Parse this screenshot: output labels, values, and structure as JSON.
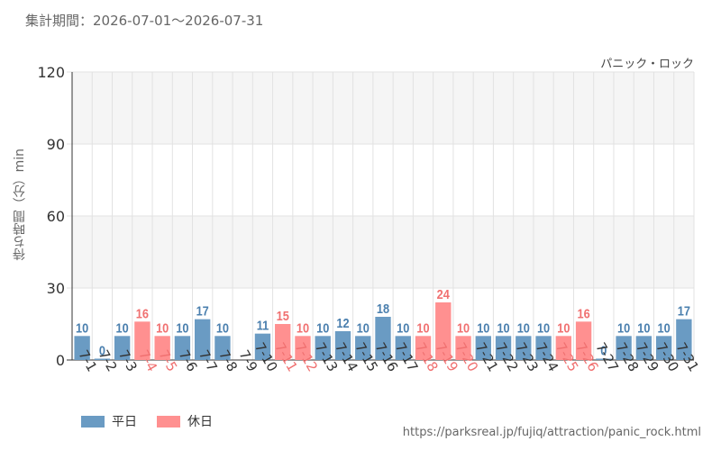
{
  "header": {
    "period": "集計期間：2026-07-01～2026-07-31",
    "attraction": "パニック・ロック"
  },
  "source_url": "https://parksreal.jp/fujiq/attraction/panic_rock.html",
  "legend": [
    {
      "label": "平日",
      "color": "#6a9bc3"
    },
    {
      "label": "休日",
      "color": "#ff9090"
    }
  ],
  "colors": {
    "weekday": "#6a9bc3",
    "weekday_label": "#4a7fae",
    "holiday": "#ff9090",
    "holiday_label": "#f07070",
    "grid": "#e2e2e2",
    "band": "#f5f5f5"
  },
  "chart_data": {
    "type": "bar",
    "title": "",
    "xlabel": "",
    "ylabel": "待ち時間（分）min",
    "ylim": [
      0,
      120
    ],
    "yticks": [
      0,
      30,
      60,
      90,
      120
    ],
    "grid": true,
    "legend_position": "bottom-left",
    "categories": [
      "7-1",
      "7-2",
      "7-3",
      "7-4",
      "7-5",
      "7-6",
      "7-7",
      "7-8",
      "7-9",
      "7-10",
      "7-11",
      "7-12",
      "7-13",
      "7-14",
      "7-15",
      "7-16",
      "7-17",
      "7-18",
      "7-19",
      "7-20",
      "7-21",
      "7-22",
      "7-23",
      "7-24",
      "7-25",
      "7-26",
      "7-27",
      "7-28",
      "7-29",
      "7-30",
      "7-31"
    ],
    "values": [
      10,
      0,
      10,
      16,
      10,
      10,
      17,
      10,
      null,
      11,
      15,
      10,
      10,
      12,
      10,
      18,
      10,
      10,
      24,
      10,
      10,
      10,
      10,
      10,
      10,
      16,
      0,
      10,
      10,
      10,
      17
    ],
    "day_type": [
      "平日",
      "平日",
      "平日",
      "休日",
      "休日",
      "平日",
      "平日",
      "平日",
      "平日",
      "平日",
      "休日",
      "休日",
      "平日",
      "平日",
      "平日",
      "平日",
      "平日",
      "休日",
      "休日",
      "休日",
      "平日",
      "平日",
      "平日",
      "平日",
      "休日",
      "休日",
      "平日",
      "平日",
      "平日",
      "平日",
      "平日"
    ]
  }
}
